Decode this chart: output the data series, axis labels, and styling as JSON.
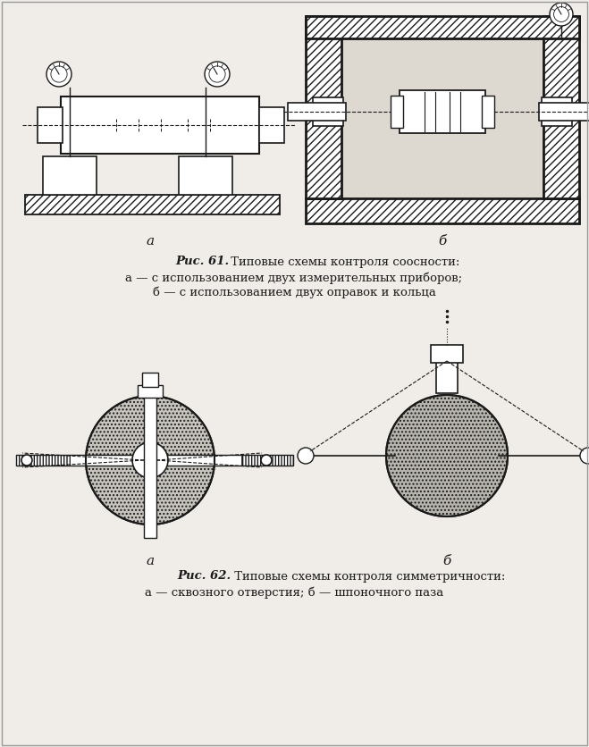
{
  "bg_color": "#f0ede8",
  "line_color": "#1a1a1a",
  "caption1_bold": "Рис. 61.",
  "caption1_normal": " Типовые схемы контроля соосности:",
  "caption1_line2": "а — с использованием двух измерительных приборов;",
  "caption1_line3": "б — с использованием двух оправок и кольца",
  "caption2_bold": "Рис. 62.",
  "caption2_normal": " Типовые схемы контроля симметричности:",
  "caption2_line2": "а — сквозного отверстия; б — шпоночного паза",
  "label_a": "а",
  "label_b": "б",
  "fig_width": 6.59,
  "fig_height": 8.36,
  "dpi": 100
}
